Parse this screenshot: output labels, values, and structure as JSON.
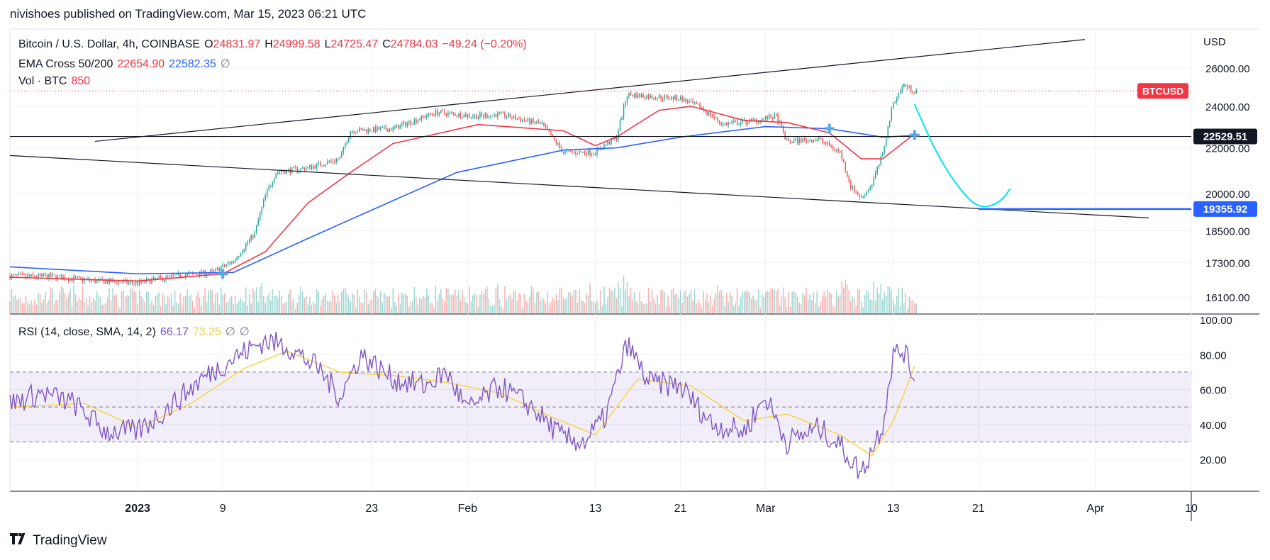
{
  "header": {
    "text": "nivishoes published on TradingView.com, Mar 15, 2023 06:21 UTC"
  },
  "legend": {
    "symbol": "Bitcoin / U.S. Dollar, 4h, COINBASE",
    "o_label": "O",
    "o": "24831.97",
    "h_label": "H",
    "h": "24999.58",
    "l_label": "L",
    "l": "24725.47",
    "c_label": "C",
    "c": "24784.03",
    "change": "−49.24 (−0.20%)",
    "ema_label": "EMA Cross 50/200",
    "ema50": "22654.90",
    "ema200": "22582.35",
    "ema_null": "∅",
    "vol_label": "Vol · BTC",
    "vol": "850",
    "rsi_label": "RSI (14, close, SMA, 14, 2)",
    "rsi": "66.17",
    "rsi_sma": "73.25",
    "rsi_null1": "∅",
    "rsi_null2": "∅"
  },
  "footer": {
    "brand": "TradingView",
    "logo_icon": "tradingview-logo-icon"
  },
  "colors": {
    "up": "#26a69a",
    "down": "#ef5350",
    "ema50": "#f23645",
    "ema200": "#2962ff",
    "rsi": "#7e57c2",
    "rsi_sma": "#f5d33a",
    "projection": "#00e5ef",
    "cross_marker": "#5aa8e8"
  },
  "chart_data": [
    {
      "type": "candlestick",
      "title": "Bitcoin / U.S. Dollar, 4h, COINBASE",
      "currency": "USD",
      "y_ticks": [
        26000,
        24000,
        22000,
        20000,
        18500,
        17300,
        16100
      ],
      "y_scale": "log",
      "x_ticks": [
        "2023",
        "9",
        "23",
        "Feb",
        "13",
        "21",
        "Mar",
        "13",
        "21",
        "Apr",
        "10"
      ],
      "x_range": [
        "2022-12-20",
        "2023-04-10"
      ],
      "price_labels": [
        {
          "text": "BTCUSD",
          "value": 24784.03
        },
        {
          "text": "22529.51",
          "value": 22529.51
        },
        {
          "text": "19355.92",
          "value": 19355.92
        }
      ],
      "close_series": [
        {
          "date": "2022-12-20",
          "close": 16820
        },
        {
          "date": "2022-12-24",
          "close": 16800
        },
        {
          "date": "2022-12-28",
          "close": 16650
        },
        {
          "date": "2023-01-01",
          "close": 16580
        },
        {
          "date": "2023-01-05",
          "close": 16850
        },
        {
          "date": "2023-01-08",
          "close": 16950
        },
        {
          "date": "2023-01-10",
          "close": 17350
        },
        {
          "date": "2023-01-12",
          "close": 18400
        },
        {
          "date": "2023-01-13",
          "close": 19900
        },
        {
          "date": "2023-01-14",
          "close": 20900
        },
        {
          "date": "2023-01-17",
          "close": 21100
        },
        {
          "date": "2023-01-20",
          "close": 21500
        },
        {
          "date": "2023-01-21",
          "close": 22800
        },
        {
          "date": "2023-01-25",
          "close": 22900
        },
        {
          "date": "2023-01-29",
          "close": 23700
        },
        {
          "date": "2023-02-02",
          "close": 23500
        },
        {
          "date": "2023-02-04",
          "close": 23600
        },
        {
          "date": "2023-02-08",
          "close": 23100
        },
        {
          "date": "2023-02-10",
          "close": 21800
        },
        {
          "date": "2023-02-13",
          "close": 21800
        },
        {
          "date": "2023-02-15",
          "close": 22500
        },
        {
          "date": "2023-02-16",
          "close": 24600
        },
        {
          "date": "2023-02-18",
          "close": 24500
        },
        {
          "date": "2023-02-21",
          "close": 24400
        },
        {
          "date": "2023-02-23",
          "close": 23900
        },
        {
          "date": "2023-02-25",
          "close": 23100
        },
        {
          "date": "2023-02-28",
          "close": 23300
        },
        {
          "date": "2023-03-02",
          "close": 23500
        },
        {
          "date": "2023-03-03",
          "close": 22300
        },
        {
          "date": "2023-03-06",
          "close": 22400
        },
        {
          "date": "2023-03-08",
          "close": 21800
        },
        {
          "date": "2023-03-09",
          "close": 20300
        },
        {
          "date": "2023-03-10",
          "close": 19800
        },
        {
          "date": "2023-03-11",
          "close": 20400
        },
        {
          "date": "2023-03-12",
          "close": 21700
        },
        {
          "date": "2023-03-13",
          "close": 24200
        },
        {
          "date": "2023-03-14",
          "close": 25100
        },
        {
          "date": "2023-03-15",
          "close": 24784
        }
      ],
      "ema50": [
        {
          "date": "2022-12-20",
          "value": 16780
        },
        {
          "date": "2023-01-01",
          "value": 16650
        },
        {
          "date": "2023-01-09",
          "value": 16900
        },
        {
          "date": "2023-01-13",
          "value": 17700
        },
        {
          "date": "2023-01-17",
          "value": 19600
        },
        {
          "date": "2023-01-21",
          "value": 20900
        },
        {
          "date": "2023-01-25",
          "value": 22200
        },
        {
          "date": "2023-02-02",
          "value": 23100
        },
        {
          "date": "2023-02-10",
          "value": 22800
        },
        {
          "date": "2023-02-13",
          "value": 22100
        },
        {
          "date": "2023-02-15",
          "value": 22500
        },
        {
          "date": "2023-02-19",
          "value": 23800
        },
        {
          "date": "2023-02-22",
          "value": 24000
        },
        {
          "date": "2023-02-27",
          "value": 23300
        },
        {
          "date": "2023-03-03",
          "value": 23200
        },
        {
          "date": "2023-03-07",
          "value": 22700
        },
        {
          "date": "2023-03-10",
          "value": 21500
        },
        {
          "date": "2023-03-12",
          "value": 21500
        },
        {
          "date": "2023-03-15",
          "value": 22654.9
        }
      ],
      "ema200": [
        {
          "date": "2022-12-20",
          "value": 17150
        },
        {
          "date": "2023-01-01",
          "value": 16900
        },
        {
          "date": "2023-01-10",
          "value": 16950
        },
        {
          "date": "2023-01-17",
          "value": 18200
        },
        {
          "date": "2023-01-25",
          "value": 19700
        },
        {
          "date": "2023-01-31",
          "value": 20900
        },
        {
          "date": "2023-02-10",
          "value": 21900
        },
        {
          "date": "2023-02-15",
          "value": 22000
        },
        {
          "date": "2023-02-21",
          "value": 22500
        },
        {
          "date": "2023-03-01",
          "value": 23000
        },
        {
          "date": "2023-03-07",
          "value": 22900
        },
        {
          "date": "2023-03-12",
          "value": 22500
        },
        {
          "date": "2023-03-15",
          "value": 22582.35
        }
      ],
      "drawings": {
        "upper_trendline": [
          {
            "date": "2022-12-28",
            "value": 22300
          },
          {
            "date": "2023-03-31",
            "value": 27600
          }
        ],
        "lower_trendline": [
          {
            "date": "2022-12-20",
            "value": 21650
          },
          {
            "date": "2023-04-06",
            "value": 19000
          }
        ],
        "horizontal_line": 22529.51,
        "projection_curve": [
          {
            "date": "2023-03-15",
            "value": 24100
          },
          {
            "date": "2023-03-17",
            "value": 21800
          },
          {
            "date": "2023-03-19",
            "value": 20300
          },
          {
            "date": "2023-03-21",
            "value": 19355.92
          },
          {
            "date": "2023-03-23",
            "value": 19600
          },
          {
            "date": "2023-03-24",
            "value": 20200
          }
        ],
        "target_ray": [
          {
            "date": "2023-03-21",
            "value": 19355.92
          },
          {
            "date": "2023-04-10",
            "value": 19355.92
          }
        ],
        "cross_markers": [
          {
            "date": "2023-01-09",
            "value": 16900
          },
          {
            "date": "2023-03-07",
            "value": 22900
          },
          {
            "date": "2023-03-15",
            "value": 22600
          }
        ]
      }
    },
    {
      "type": "line",
      "title": "RSI (14, close, SMA, 14, 2)",
      "y_ticks": [
        100,
        80,
        60,
        40,
        20
      ],
      "ylim": [
        0,
        100
      ],
      "band": [
        30,
        70
      ],
      "midline": 50,
      "series": [
        {
          "name": "RSI",
          "values": [
            {
              "date": "2022-12-20",
              "value": 52
            },
            {
              "date": "2022-12-23",
              "value": 58
            },
            {
              "date": "2022-12-26",
              "value": 52
            },
            {
              "date": "2022-12-29",
              "value": 36
            },
            {
              "date": "2023-01-01",
              "value": 36
            },
            {
              "date": "2023-01-04",
              "value": 50
            },
            {
              "date": "2023-01-07",
              "value": 66
            },
            {
              "date": "2023-01-10",
              "value": 78
            },
            {
              "date": "2023-01-13",
              "value": 88
            },
            {
              "date": "2023-01-15",
              "value": 85
            },
            {
              "date": "2023-01-18",
              "value": 72
            },
            {
              "date": "2023-01-20",
              "value": 56
            },
            {
              "date": "2023-01-22",
              "value": 80
            },
            {
              "date": "2023-01-25",
              "value": 66
            },
            {
              "date": "2023-01-28",
              "value": 62
            },
            {
              "date": "2023-01-30",
              "value": 70
            },
            {
              "date": "2023-02-01",
              "value": 48
            },
            {
              "date": "2023-02-04",
              "value": 62
            },
            {
              "date": "2023-02-07",
              "value": 50
            },
            {
              "date": "2023-02-10",
              "value": 32
            },
            {
              "date": "2023-02-12",
              "value": 30
            },
            {
              "date": "2023-02-14",
              "value": 45
            },
            {
              "date": "2023-02-16",
              "value": 86
            },
            {
              "date": "2023-02-18",
              "value": 64
            },
            {
              "date": "2023-02-21",
              "value": 62
            },
            {
              "date": "2023-02-24",
              "value": 40
            },
            {
              "date": "2023-02-27",
              "value": 36
            },
            {
              "date": "2023-03-01",
              "value": 56
            },
            {
              "date": "2023-03-03",
              "value": 30
            },
            {
              "date": "2023-03-06",
              "value": 38
            },
            {
              "date": "2023-03-08",
              "value": 28
            },
            {
              "date": "2023-03-10",
              "value": 12
            },
            {
              "date": "2023-03-12",
              "value": 40
            },
            {
              "date": "2023-03-13",
              "value": 80
            },
            {
              "date": "2023-03-14",
              "value": 82
            },
            {
              "date": "2023-03-15",
              "value": 66.17
            }
          ]
        },
        {
          "name": "RSI-based MA",
          "values": [
            {
              "date": "2022-12-20",
              "value": 50
            },
            {
              "date": "2022-12-27",
              "value": 52
            },
            {
              "date": "2023-01-01",
              "value": 38
            },
            {
              "date": "2023-01-06",
              "value": 52
            },
            {
              "date": "2023-01-11",
              "value": 72
            },
            {
              "date": "2023-01-15",
              "value": 82
            },
            {
              "date": "2023-01-20",
              "value": 70
            },
            {
              "date": "2023-01-25",
              "value": 68
            },
            {
              "date": "2023-01-30",
              "value": 64
            },
            {
              "date": "2023-02-04",
              "value": 58
            },
            {
              "date": "2023-02-09",
              "value": 44
            },
            {
              "date": "2023-02-13",
              "value": 34
            },
            {
              "date": "2023-02-17",
              "value": 66
            },
            {
              "date": "2023-02-22",
              "value": 62
            },
            {
              "date": "2023-02-27",
              "value": 42
            },
            {
              "date": "2023-03-03",
              "value": 46
            },
            {
              "date": "2023-03-08",
              "value": 34
            },
            {
              "date": "2023-03-11",
              "value": 22
            },
            {
              "date": "2023-03-13",
              "value": 42
            },
            {
              "date": "2023-03-15",
              "value": 73.25
            }
          ]
        }
      ]
    }
  ]
}
